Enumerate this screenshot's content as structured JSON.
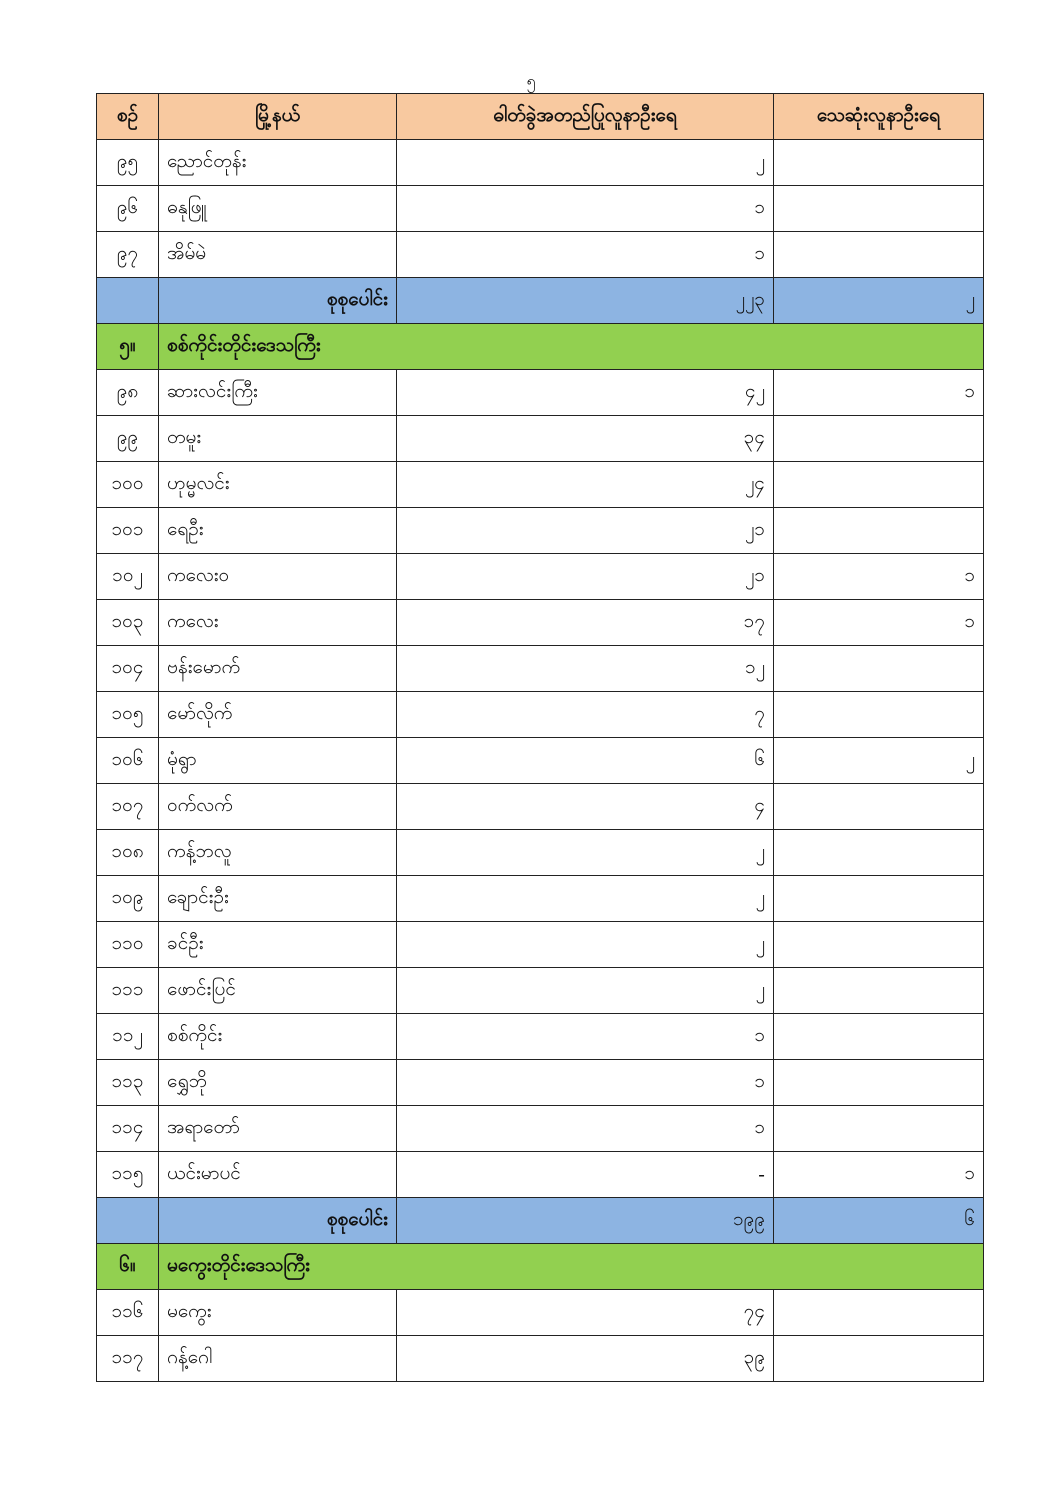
{
  "page_number": "၅",
  "header": {
    "no": "စဉ်",
    "township": "မြို့နယ်",
    "confirmed": "ဓါတ်ခွဲအတည်ပြုလူနာဦးရေ",
    "deaths": "သေဆုံးလူနာဦးရေ"
  },
  "colors": {
    "header": "#f8c9a0",
    "section": "#92d050",
    "total": "#8db4e2"
  },
  "rows": [
    {
      "type": "row",
      "no": "၉၅",
      "township": "ညောင်တုန်း",
      "confirmed": "၂",
      "deaths": ""
    },
    {
      "type": "row",
      "no": "၉၆",
      "township": "ဓနုဖြူ",
      "confirmed": "၁",
      "deaths": ""
    },
    {
      "type": "row",
      "no": "၉၇",
      "township": "အိမ်မဲ",
      "confirmed": "၁",
      "deaths": ""
    },
    {
      "type": "total",
      "label": "စုစုပေါင်း",
      "confirmed": "၂၂၃",
      "deaths": "၂"
    },
    {
      "type": "section",
      "no": "၅။",
      "label": "စစ်ကိုင်းတိုင်းဒေသကြီး"
    },
    {
      "type": "row",
      "no": "၉၈",
      "township": "ဆားလင်းကြီး",
      "confirmed": "၄၂",
      "deaths": "၁"
    },
    {
      "type": "row",
      "no": "၉၉",
      "township": "တမူး",
      "confirmed": "၃၄",
      "deaths": ""
    },
    {
      "type": "row",
      "no": "၁၀၀",
      "township": "ဟုမ္မလင်း",
      "confirmed": "၂၄",
      "deaths": ""
    },
    {
      "type": "row",
      "no": "၁၀၁",
      "township": "ရေဦး",
      "confirmed": "၂၁",
      "deaths": ""
    },
    {
      "type": "row",
      "no": "၁၀၂",
      "township": "ကလေးဝ",
      "confirmed": "၂၁",
      "deaths": "၁"
    },
    {
      "type": "row",
      "no": "၁၀၃",
      "township": "ကလေး",
      "confirmed": "၁၇",
      "deaths": "၁"
    },
    {
      "type": "row",
      "no": "၁၀၄",
      "township": "ဗန်းမောက်",
      "confirmed": "၁၂",
      "deaths": ""
    },
    {
      "type": "row",
      "no": "၁၀၅",
      "township": "မော်လိုက်",
      "confirmed": "၇",
      "deaths": ""
    },
    {
      "type": "row",
      "no": "၁၀၆",
      "township": "မုံရွာ",
      "confirmed": "၆",
      "deaths": "၂"
    },
    {
      "type": "row",
      "no": "၁၀၇",
      "township": "ဝက်လက်",
      "confirmed": "၄",
      "deaths": ""
    },
    {
      "type": "row",
      "no": "၁၀၈",
      "township": "ကန့်ဘလူ",
      "confirmed": "၂",
      "deaths": ""
    },
    {
      "type": "row",
      "no": "၁၀၉",
      "township": "ချောင်းဦး",
      "confirmed": "၂",
      "deaths": ""
    },
    {
      "type": "row",
      "no": "၁၁၀",
      "township": "ခင်ဦး",
      "confirmed": "၂",
      "deaths": ""
    },
    {
      "type": "row",
      "no": "၁၁၁",
      "township": "ဖောင်းပြင်",
      "confirmed": "၂",
      "deaths": ""
    },
    {
      "type": "row",
      "no": "၁၁၂",
      "township": "စစ်ကိုင်း",
      "confirmed": "၁",
      "deaths": ""
    },
    {
      "type": "row",
      "no": "၁၁၃",
      "township": "ရွှေဘို",
      "confirmed": "၁",
      "deaths": ""
    },
    {
      "type": "row",
      "no": "၁၁၄",
      "township": "အရာတော်",
      "confirmed": "၁",
      "deaths": ""
    },
    {
      "type": "row",
      "no": "၁၁၅",
      "township": "ယင်းမာပင်",
      "confirmed": "-",
      "deaths": "၁"
    },
    {
      "type": "total",
      "label": "စုစုပေါင်း",
      "confirmed": "၁၉၉",
      "deaths": "၆"
    },
    {
      "type": "section",
      "no": "၆။",
      "label": "မကွေးတိုင်းဒေသကြီး"
    },
    {
      "type": "row",
      "no": "၁၁၆",
      "township": "မကွေး",
      "confirmed": "၇၄",
      "deaths": ""
    },
    {
      "type": "row",
      "no": "၁၁၇",
      "township": "ဂန့်ဂေါ",
      "confirmed": "၃၉",
      "deaths": ""
    }
  ]
}
